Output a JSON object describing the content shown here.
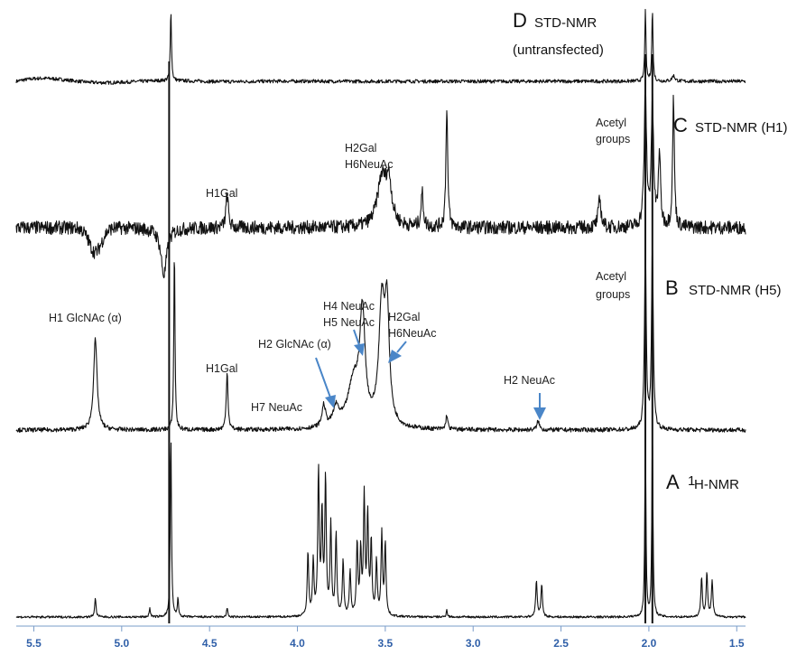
{
  "colors": {
    "trace": "#111111",
    "axis": "#2f5fa8",
    "arrow": "#4a86c8",
    "text": "#222222"
  },
  "chart_data": {
    "type": "line",
    "x_axis": {
      "ticks": [
        5.5,
        5.0,
        4.5,
        4.0,
        3.5,
        3.0,
        2.5,
        2.0,
        1.5
      ],
      "tick_labels": [
        "5.5",
        "5.0",
        "4.5",
        "4.0",
        "3.5",
        "3.0",
        "2.5",
        "2.0",
        "1.5"
      ],
      "xlim": [
        5.6,
        1.45
      ],
      "reversed": true
    },
    "panels": [
      {
        "letter": "D",
        "title_line1": "STD-NMR",
        "title_line2": "(untransfected)",
        "baseline": 0,
        "noise": 0.025,
        "peaks": [
          {
            "ppm": 4.72,
            "height": 1.0,
            "width": 0.004
          },
          {
            "ppm": 2.02,
            "height": 1.0,
            "width": 0.004
          },
          {
            "ppm": 1.98,
            "height": 1.0,
            "width": 0.004
          },
          {
            "ppm": 1.86,
            "height": 0.08,
            "width": 0.01
          }
        ],
        "labels": []
      },
      {
        "letter": "C",
        "title_line1": "STD-NMR (H1)",
        "title_line2": "",
        "baseline": 0,
        "noise": 0.05,
        "peaks": [
          {
            "ppm": 4.4,
            "height": 0.25,
            "width": 0.008
          },
          {
            "ppm": 3.52,
            "height": 0.35,
            "width": 0.03
          },
          {
            "ppm": 3.48,
            "height": 0.3,
            "width": 0.02
          },
          {
            "ppm": 3.29,
            "height": 0.25,
            "width": 0.008
          },
          {
            "ppm": 3.15,
            "height": 0.9,
            "width": 0.006
          },
          {
            "ppm": 2.28,
            "height": 0.2,
            "width": 0.01
          },
          {
            "ppm": 2.02,
            "height": 1.0,
            "width": 0.008
          },
          {
            "ppm": 1.98,
            "height": 0.9,
            "width": 0.008
          },
          {
            "ppm": 1.94,
            "height": 0.55,
            "width": 0.007
          },
          {
            "ppm": 1.86,
            "height": 0.95,
            "width": 0.006
          },
          {
            "ppm": 4.76,
            "height": -0.35,
            "width": 0.02
          }
        ],
        "labels": [
          {
            "text": "H1Gal",
            "ppm": 4.4
          },
          {
            "text": "H2Gal",
            "ppm": 3.51
          },
          {
            "text": "H6NeuAc",
            "ppm": 3.51
          },
          {
            "text": "Acetyl",
            "ppm": 2.02
          },
          {
            "text": "groups",
            "ppm": 2.02
          }
        ]
      },
      {
        "letter": "B",
        "title_line1": "STD-NMR (H5)",
        "title_line2": "",
        "baseline": 0,
        "noise": 0.012,
        "peaks": [
          {
            "ppm": 5.15,
            "height": 0.5,
            "width": 0.012
          },
          {
            "ppm": 4.7,
            "height": 1.0,
            "width": 0.004
          },
          {
            "ppm": 4.4,
            "height": 0.32,
            "width": 0.006
          },
          {
            "ppm": 3.85,
            "height": 0.12,
            "width": 0.012
          },
          {
            "ppm": 3.78,
            "height": 0.1,
            "width": 0.02
          },
          {
            "ppm": 3.68,
            "height": 0.25,
            "width": 0.04
          },
          {
            "ppm": 3.63,
            "height": 0.6,
            "width": 0.018
          },
          {
            "ppm": 3.52,
            "height": 0.65,
            "width": 0.02
          },
          {
            "ppm": 3.49,
            "height": 0.6,
            "width": 0.015
          },
          {
            "ppm": 3.15,
            "height": 0.08,
            "width": 0.006
          },
          {
            "ppm": 2.63,
            "height": 0.05,
            "width": 0.008
          },
          {
            "ppm": 2.02,
            "height": 1.0,
            "width": 0.006
          },
          {
            "ppm": 1.98,
            "height": 1.0,
            "width": 0.006
          }
        ],
        "labels": [
          {
            "text": "H1 GlcNAc (α)",
            "ppm": 5.15
          },
          {
            "text": "H1Gal",
            "ppm": 4.4
          },
          {
            "text": "H7 NeuAc",
            "ppm": 3.85
          },
          {
            "text": "H2 GlcNAc (α)",
            "ppm": 3.78
          },
          {
            "text": "H4 NeuAc",
            "ppm": 3.63
          },
          {
            "text": "H5 NeuAc",
            "ppm": 3.63
          },
          {
            "text": "H2Gal",
            "ppm": 3.51
          },
          {
            "text": "H6NeuAc",
            "ppm": 3.51
          },
          {
            "text": "H2 NeuAc",
            "ppm": 2.63
          },
          {
            "text": "Acetyl",
            "ppm": 2.02
          },
          {
            "text": "groups",
            "ppm": 2.02
          }
        ]
      },
      {
        "letter": "A",
        "title_sup": "1",
        "title_line1": "H-NMR",
        "title_line2": "",
        "baseline": 0,
        "noise": 0.006,
        "peaks": [
          {
            "ppm": 5.15,
            "height": 0.1,
            "width": 0.005
          },
          {
            "ppm": 4.84,
            "height": 0.05,
            "width": 0.004
          },
          {
            "ppm": 4.72,
            "height": 1.0,
            "width": 0.004
          },
          {
            "ppm": 4.68,
            "height": 0.1,
            "width": 0.004
          },
          {
            "ppm": 4.4,
            "height": 0.05,
            "width": 0.004
          },
          {
            "ppm": 3.94,
            "height": 0.35,
            "width": 0.005
          },
          {
            "ppm": 3.91,
            "height": 0.3,
            "width": 0.005
          },
          {
            "ppm": 3.88,
            "height": 0.8,
            "width": 0.005
          },
          {
            "ppm": 3.86,
            "height": 0.55,
            "width": 0.005
          },
          {
            "ppm": 3.84,
            "height": 0.75,
            "width": 0.005
          },
          {
            "ppm": 3.81,
            "height": 0.5,
            "width": 0.005
          },
          {
            "ppm": 3.78,
            "height": 0.45,
            "width": 0.005
          },
          {
            "ppm": 3.74,
            "height": 0.3,
            "width": 0.005
          },
          {
            "ppm": 3.7,
            "height": 0.25,
            "width": 0.005
          },
          {
            "ppm": 3.66,
            "height": 0.4,
            "width": 0.005
          },
          {
            "ppm": 3.64,
            "height": 0.35,
            "width": 0.005
          },
          {
            "ppm": 3.62,
            "height": 0.65,
            "width": 0.005
          },
          {
            "ppm": 3.6,
            "height": 0.55,
            "width": 0.005
          },
          {
            "ppm": 3.58,
            "height": 0.4,
            "width": 0.005
          },
          {
            "ppm": 3.55,
            "height": 0.3,
            "width": 0.005
          },
          {
            "ppm": 3.52,
            "height": 0.45,
            "width": 0.005
          },
          {
            "ppm": 3.5,
            "height": 0.4,
            "width": 0.005
          },
          {
            "ppm": 3.15,
            "height": 0.04,
            "width": 0.004
          },
          {
            "ppm": 2.64,
            "height": 0.2,
            "width": 0.005
          },
          {
            "ppm": 2.61,
            "height": 0.18,
            "width": 0.005
          },
          {
            "ppm": 2.02,
            "height": 1.0,
            "width": 0.004
          },
          {
            "ppm": 1.98,
            "height": 1.0,
            "width": 0.004
          },
          {
            "ppm": 1.7,
            "height": 0.22,
            "width": 0.005
          },
          {
            "ppm": 1.67,
            "height": 0.24,
            "width": 0.005
          },
          {
            "ppm": 1.64,
            "height": 0.2,
            "width": 0.005
          }
        ],
        "labels": []
      }
    ]
  }
}
